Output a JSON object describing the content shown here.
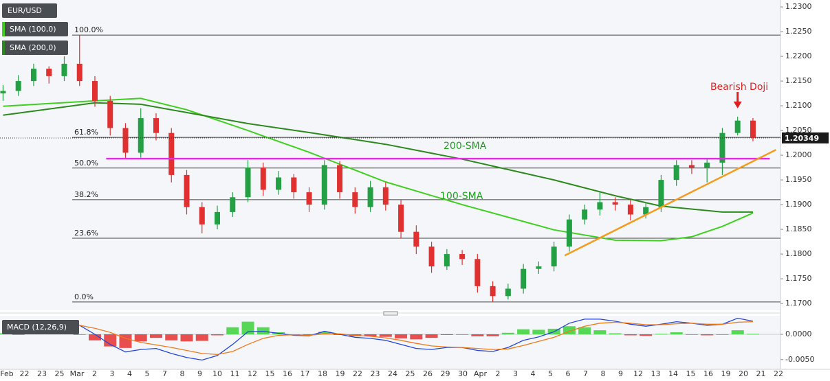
{
  "chart_data": [
    {
      "type": "candlestick",
      "title": "EUR/USD",
      "xlim": [
        -0.2,
        50.8
      ],
      "ylim": [
        1.1689,
        1.2314
      ],
      "yticks": [
        {
          "value": 1.17,
          "label": "1.1700"
        },
        {
          "value": 1.175,
          "label": "1.1750"
        },
        {
          "value": 1.18,
          "label": "1.1800"
        },
        {
          "value": 1.185,
          "label": "1.1850"
        },
        {
          "value": 1.19,
          "label": "1.1900"
        },
        {
          "value": 1.195,
          "label": "1.1950"
        },
        {
          "value": 1.2,
          "label": "1.2000"
        },
        {
          "value": 1.205,
          "label": "1.2050"
        },
        {
          "value": 1.21,
          "label": "1.2100"
        },
        {
          "value": 1.215,
          "label": "1.2150"
        },
        {
          "value": 1.22,
          "label": "1.2200"
        },
        {
          "value": 1.225,
          "label": "1.2250"
        },
        {
          "value": 1.23,
          "label": "1.2300"
        }
      ],
      "open": [
        1.2125,
        1.213,
        1.215,
        1.2175,
        1.216,
        1.2185,
        1.215,
        1.211,
        1.2055,
        1.2005,
        1.2075,
        1.2045,
        1.196,
        1.1895,
        1.186,
        1.1885,
        1.1915,
        1.1975,
        1.193,
        1.1955,
        1.1925,
        1.19,
        1.198,
        1.1925,
        1.1895,
        1.1935,
        1.19,
        1.1845,
        1.1815,
        1.1775,
        1.18,
        1.179,
        1.1735,
        1.1715,
        1.173,
        1.177,
        1.1775,
        1.1815,
        1.187,
        1.189,
        1.1905,
        1.19,
        1.188,
        1.1895,
        1.195,
        1.198,
        1.1975,
        1.1985,
        1.2045,
        1.207
      ],
      "high": [
        1.2142,
        1.2162,
        1.2185,
        1.218,
        1.22,
        1.2243,
        1.216,
        1.212,
        1.2065,
        1.2095,
        1.2085,
        1.2055,
        1.197,
        1.1905,
        1.1898,
        1.1925,
        1.199,
        1.1985,
        1.1968,
        1.1962,
        1.1935,
        1.199,
        1.1988,
        1.1935,
        1.1948,
        1.1945,
        1.191,
        1.1858,
        1.1825,
        1.181,
        1.1808,
        1.18,
        1.1745,
        1.174,
        1.178,
        1.1785,
        1.1825,
        1.188,
        1.19,
        1.1925,
        1.1915,
        1.191,
        1.1905,
        1.196,
        1.199,
        1.199,
        1.1992,
        1.2055,
        1.2078,
        1.2075
      ],
      "low": [
        1.211,
        1.212,
        1.214,
        1.2145,
        1.215,
        1.214,
        1.2098,
        1.204,
        1.1992,
        1.1995,
        1.203,
        1.1945,
        1.188,
        1.1842,
        1.185,
        1.1875,
        1.1905,
        1.1918,
        1.192,
        1.1912,
        1.1885,
        1.189,
        1.1912,
        1.1882,
        1.1885,
        1.1888,
        1.1832,
        1.18,
        1.1762,
        1.1768,
        1.1778,
        1.1722,
        1.1703,
        1.1708,
        1.172,
        1.176,
        1.1765,
        1.1805,
        1.186,
        1.1878,
        1.1888,
        1.1868,
        1.1872,
        1.1885,
        1.1938,
        1.1962,
        1.1945,
        1.196,
        1.204,
        1.2028
      ],
      "close": [
        1.213,
        1.215,
        1.2175,
        1.216,
        1.2185,
        1.215,
        1.211,
        1.2055,
        1.2005,
        1.2075,
        1.2045,
        1.196,
        1.1895,
        1.186,
        1.1885,
        1.1915,
        1.1975,
        1.193,
        1.1955,
        1.1925,
        1.19,
        1.198,
        1.1925,
        1.1895,
        1.1935,
        1.19,
        1.1845,
        1.1815,
        1.1775,
        1.18,
        1.179,
        1.1735,
        1.1715,
        1.173,
        1.177,
        1.1775,
        1.1815,
        1.187,
        1.189,
        1.1905,
        1.19,
        1.188,
        1.1895,
        1.195,
        1.198,
        1.1975,
        1.1985,
        1.2045,
        1.207,
        1.2035
      ],
      "up_color": "#22a043",
      "down_color": "#e0302f",
      "last_price": 1.20349,
      "series": [
        {
          "name": "SMA (100,0)",
          "color": "#3fd01f",
          "x": [
            0,
            6,
            9,
            12,
            16,
            20,
            25,
            30,
            36,
            40,
            43,
            45,
            47,
            49
          ],
          "values": [
            1.2099,
            1.211,
            1.2115,
            1.2092,
            1.205,
            1.2006,
            1.1946,
            1.19,
            1.1849,
            1.1828,
            1.1827,
            1.1835,
            1.1856,
            1.1883
          ]
        },
        {
          "name": "SMA (200,0)",
          "color": "#2c8a1c",
          "x": [
            0,
            6,
            9,
            16,
            20,
            25,
            30,
            36,
            40,
            43,
            47,
            49
          ],
          "values": [
            1.2081,
            1.2106,
            1.2103,
            1.2064,
            1.2046,
            1.2022,
            1.1992,
            1.195,
            1.1918,
            1.1897,
            1.1885,
            1.1885
          ]
        }
      ],
      "levels": [
        {
          "label": "100.0%",
          "value": 1.2243
        },
        {
          "label": "61.8%",
          "value": 1.2036
        },
        {
          "label": "50.0%",
          "value": 1.1974
        },
        {
          "label": "38.2%",
          "value": 1.191
        },
        {
          "label": "23.6%",
          "value": 1.1832
        },
        {
          "label": "0.0%",
          "value": 1.1703
        }
      ],
      "level_color": "#444444",
      "lines": [
        {
          "color": "#e02ee0",
          "x": [
            6.74,
            50.1
          ],
          "values": [
            1.1993,
            1.1993
          ]
        },
        {
          "color": "#f39c1e",
          "x": [
            36.7,
            50.5
          ],
          "values": [
            1.1797,
            1.2011
          ]
        }
      ],
      "annotations": [
        {
          "text": "200-SMA",
          "color": "#1f9e1f"
        },
        {
          "text": "100-SMA",
          "color": "#1f9e1f"
        },
        {
          "text": "Bearish Doji",
          "color": "#e02020"
        }
      ]
    },
    {
      "type": "macd",
      "title": "MACD (12,26,9)",
      "xlim": [
        -0.2,
        50.8
      ],
      "ylim": [
        -0.0068,
        0.0034
      ],
      "yticks": [
        {
          "value": 0,
          "label": "0.0000"
        },
        {
          "value": -0.005,
          "label": "-0.0050"
        }
      ],
      "series": [
        {
          "color": "#2445d8",
          "values": [
            0.0012,
            0.001,
            0.0015,
            0.0018,
            0.0022,
            0.0018,
            0.0,
            -0.002,
            -0.0035,
            -0.003,
            -0.0028,
            -0.0038,
            -0.0046,
            -0.0051,
            -0.0042,
            -0.002,
            0.0005,
            0.0006,
            0.0002,
            -0.0002,
            -0.0003,
            0.0006,
            0.0,
            -0.0006,
            -0.0008,
            -0.0012,
            -0.002,
            -0.0028,
            -0.003,
            -0.0026,
            -0.0026,
            -0.0032,
            -0.0034,
            -0.0026,
            -0.0012,
            -0.0005,
            0.0005,
            0.0022,
            0.003,
            0.003,
            0.0026,
            0.002,
            0.0016,
            0.002,
            0.0025,
            0.0022,
            0.0018,
            0.002,
            0.0032,
            0.0026
          ]
        },
        {
          "color": "#f07a1a",
          "values": [
            0.001,
            0.001,
            0.0012,
            0.0014,
            0.0017,
            0.0018,
            0.0012,
            0.0004,
            -0.0008,
            -0.0016,
            -0.0021,
            -0.0026,
            -0.0032,
            -0.0038,
            -0.004,
            -0.0034,
            -0.002,
            -0.0008,
            -0.0002,
            -0.0001,
            -0.0002,
            0.0001,
            0.0001,
            -0.0002,
            -0.0004,
            -0.0007,
            -0.0012,
            -0.0018,
            -0.0023,
            -0.0025,
            -0.0026,
            -0.0028,
            -0.003,
            -0.0029,
            -0.0022,
            -0.0014,
            -0.0006,
            0.0006,
            0.0016,
            0.0022,
            0.0024,
            0.0022,
            0.0019,
            0.0019,
            0.0021,
            0.0022,
            0.002,
            0.002,
            0.0024,
            0.0025
          ]
        }
      ],
      "histogram": [
        0.0002,
        0.0,
        0.0003,
        0.0004,
        0.0005,
        0.0,
        -0.0012,
        -0.0024,
        -0.0027,
        -0.0014,
        -0.0007,
        -0.0012,
        -0.0014,
        -0.0013,
        -0.0002,
        0.0014,
        0.0025,
        0.0014,
        0.0004,
        -0.0001,
        -0.0001,
        0.0005,
        -0.0001,
        -0.0004,
        -0.0004,
        -0.0005,
        -0.0008,
        -0.001,
        -0.0007,
        -0.0001,
        0.0,
        -0.0004,
        -0.0004,
        0.0003,
        0.001,
        0.0009,
        0.0011,
        0.0016,
        0.0014,
        0.0008,
        0.0002,
        -0.0002,
        -0.0003,
        0.0001,
        0.0004,
        0.0,
        -0.0002,
        0.0,
        0.0008,
        0.0001
      ],
      "hist_up_color": "#3ad13a",
      "hist_down_color": "#e53030",
      "xtick_labels": [
        "Feb",
        "22",
        "23",
        "25",
        "Mar",
        "2",
        "3",
        "4",
        "5",
        "7",
        "8",
        "9",
        "10",
        "11",
        "12",
        "15",
        "16",
        "17",
        "18",
        "19",
        "22",
        "23",
        "24",
        "25",
        "26",
        "29",
        "30",
        "Apr",
        "2",
        "3",
        "4",
        "5",
        "6",
        "7",
        "8",
        "9",
        "12",
        "13",
        "14",
        "15",
        "16",
        "19",
        "20",
        "21",
        "22"
      ]
    }
  ]
}
